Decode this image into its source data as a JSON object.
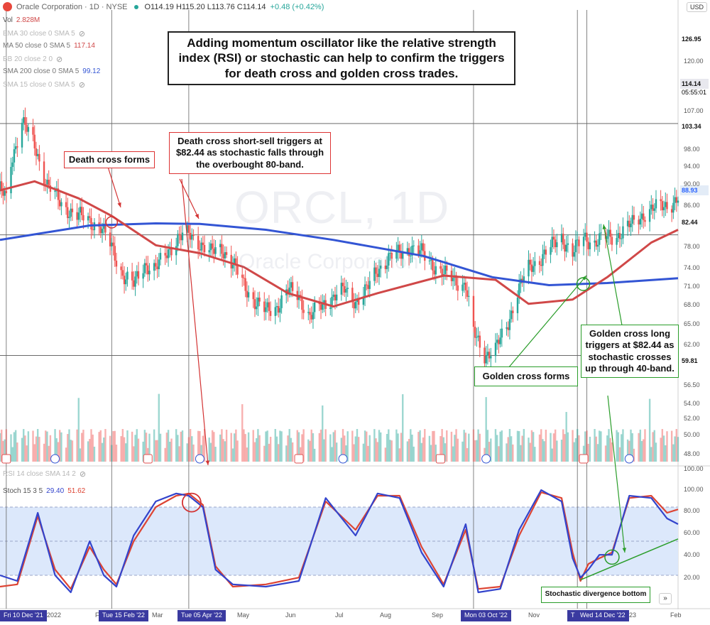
{
  "header": {
    "symbol_title": "Oracle Corporation · 1D · NYSE",
    "ohlc": "O114.19 H115.20 L113.76 C114.14",
    "change": "+0.48 (+0.42%)",
    "currency": "USD"
  },
  "legends": {
    "vol": {
      "label": "Vol",
      "value": "2.828M"
    },
    "ema30": {
      "label": "EMA 30 close 0 SMA 5"
    },
    "ma50": {
      "label": "MA 50 close 0 SMA 5",
      "value": "117.14"
    },
    "bb20": {
      "label": "BB 20 close 2 0"
    },
    "sma200": {
      "label": "SMA 200 close 0 SMA 5",
      "value": "99.12"
    },
    "sma15": {
      "label": "SMA 15 close 0 SMA 5"
    },
    "rsi": {
      "label": "RSI 14 close SMA 14 2"
    },
    "stoch": {
      "label": "Stoch 15 3 5",
      "k": "29.40",
      "d": "51.62"
    }
  },
  "watermark": {
    "ticker": "ORCL, 1D",
    "name": "Oracle Corporation"
  },
  "annotations": {
    "main": "Adding momentum oscillator like the relative strength index (RSI) or stochastic can help to confirm the triggers for death cross and golden cross trades.",
    "death_cross": "Death cross forms",
    "short_trigger": "Death cross short-sell triggers at $82.44 as stochastic falls through the overbought 80-band.",
    "golden_cross": "Golden cross forms",
    "long_trigger": "Golden cross long triggers at $82.44 as stochastic crosses up through 40-band.",
    "divergence": "Stochastic divergence bottom"
  },
  "price_tags": [
    {
      "value": "126.95",
      "bg": "#ffffff",
      "fg": "#111111"
    },
    {
      "value": "114.14",
      "sub": "05:55:01",
      "bg": "#e8e8ee",
      "fg": "#111111"
    },
    {
      "value": "103.34",
      "bg": "#ffffff",
      "fg": "#111111"
    },
    {
      "value": "88.93",
      "bg": "#e3ecf7",
      "fg": "#2962ff"
    },
    {
      "value": "82.44",
      "bg": "#ffffff",
      "fg": "#111111"
    },
    {
      "value": "59.81",
      "bg": "#ffffff",
      "fg": "#111111"
    }
  ],
  "price_axis_ticks": [
    "120.00",
    "107.00",
    "98.00",
    "94.00",
    "90.00",
    "86.00",
    "78.00",
    "74.00",
    "71.00",
    "68.00",
    "65.00",
    "62.00",
    "56.50",
    "54.00",
    "52.00",
    "50.00",
    "48.00"
  ],
  "osc_axis_ticks": [
    "100.00",
    "80.00",
    "60.00",
    "40.00",
    "20.00"
  ],
  "x_axis": {
    "labels": [
      "2022",
      "F",
      "Mar",
      "May",
      "Jun",
      "Jul",
      "Aug",
      "Sep",
      "Nov",
      "23",
      "Feb"
    ],
    "selected": [
      "Fri 10 Dec '21",
      "Tue 15 Feb '22",
      "Tue 05 Apr '22",
      "Mon 03 Oct '22",
      "T",
      "Wed 14 Dec '22"
    ]
  },
  "colors": {
    "sma200": "#3355d4",
    "ma50": "#d04848",
    "up": "#26a69a",
    "down": "#ef5350",
    "stoch_k": "#3344cc",
    "stoch_d": "#dd4433",
    "annot_red": "#d33333",
    "annot_green": "#2a9d2a",
    "osc_band": "#dce8fb"
  },
  "chart_data": [
    {
      "type": "candlestick",
      "title": "Oracle Corporation · 1D · NYSE",
      "ylim": [
        45,
        130
      ],
      "x_range": [
        "2021-12-06",
        "2023-02-10"
      ],
      "close_path_dates": [
        "2021-12-06",
        "2021-12-10",
        "2021-12-13",
        "2021-12-20",
        "2021-12-28",
        "2022-01-05",
        "2022-01-14",
        "2022-01-25",
        "2022-02-01",
        "2022-02-08",
        "2022-02-15",
        "2022-02-22",
        "2022-03-01",
        "2022-03-08",
        "2022-03-15",
        "2022-03-22",
        "2022-03-29",
        "2022-04-05",
        "2022-04-12",
        "2022-04-19",
        "2022-04-26",
        "2022-05-03",
        "2022-05-10",
        "2022-05-17",
        "2022-05-24",
        "2022-05-31",
        "2022-06-07",
        "2022-06-14",
        "2022-06-21",
        "2022-06-28",
        "2022-07-06",
        "2022-07-13",
        "2022-07-20",
        "2022-07-27",
        "2022-08-03",
        "2022-08-10",
        "2022-08-17",
        "2022-08-24",
        "2022-08-31",
        "2022-09-07",
        "2022-09-14",
        "2022-09-21",
        "2022-09-28",
        "2022-10-03",
        "2022-10-10",
        "2022-10-17",
        "2022-10-24",
        "2022-10-31",
        "2022-11-07",
        "2022-11-14",
        "2022-11-21",
        "2022-11-28",
        "2022-12-05",
        "2022-12-12",
        "2022-12-19",
        "2022-12-27",
        "2023-01-03",
        "2023-01-10",
        "2023-01-17",
        "2023-01-24",
        "2023-01-31",
        "2023-02-07",
        "2023-02-10"
      ],
      "close_path": [
        91,
        89,
        96,
        104,
        99,
        92,
        88,
        86,
        85,
        84,
        80,
        75,
        73,
        77,
        76,
        79,
        82,
        82.4,
        81,
        79,
        80,
        77,
        73,
        70,
        68,
        69,
        72,
        71,
        67,
        69,
        71,
        72,
        70,
        72,
        76,
        78,
        79,
        80,
        79,
        77,
        75,
        74,
        73,
        64,
        60,
        61,
        65,
        72,
        76,
        78,
        80,
        82,
        79,
        82,
        81,
        82,
        82.5,
        84,
        86,
        87,
        88,
        88.5,
        89
      ],
      "sma200": {
        "dates": [
          "2021-12-06",
          "2022-02-01",
          "2022-03-15",
          "2022-04-12",
          "2022-05-24",
          "2022-07-06",
          "2022-09-01",
          "2022-10-15",
          "2022-11-20",
          "2022-12-27",
          "2023-02-10"
        ],
        "values": [
          81.5,
          84.2,
          84.6,
          84.5,
          83.4,
          81.5,
          78.5,
          74.5,
          73.0,
          73.4,
          74.3
        ]
      },
      "ma50": {
        "dates": [
          "2021-12-06",
          "2021-12-28",
          "2022-01-25",
          "2022-02-15",
          "2022-03-15",
          "2022-04-12",
          "2022-05-10",
          "2022-06-07",
          "2022-07-06",
          "2022-08-03",
          "2022-09-14",
          "2022-10-17",
          "2022-11-07",
          "2022-12-05",
          "2022-12-27",
          "2023-01-24",
          "2023-02-10"
        ],
        "values": [
          90.8,
          92.5,
          89.3,
          86.0,
          80.5,
          79.0,
          76.4,
          71.5,
          69.0,
          71.5,
          74.8,
          74.0,
          69.5,
          70.3,
          74.5,
          81.0,
          83.4
        ]
      },
      "events": [
        {
          "name": "Death cross forms",
          "date": "2022-02-15",
          "price": 84.8
        },
        {
          "name": "Death cross short-sell trigger",
          "date": "2022-04-05",
          "price": 82.44
        },
        {
          "name": "Golden cross forms",
          "date": "2022-12-14",
          "price": 73.2
        },
        {
          "name": "Golden cross long trigger",
          "date": "2022-12-14",
          "price": 82.44
        }
      ]
    },
    {
      "type": "bar",
      "title": "Vol",
      "series": [
        {
          "name": "Vol",
          "last_value": "2.828M"
        }
      ]
    },
    {
      "type": "line",
      "title": "Stoch 15 3 5",
      "ylim": [
        0,
        100
      ],
      "bands": [
        80,
        50,
        20
      ],
      "x": [
        "2021-12-06",
        "2021-12-17",
        "2021-12-30",
        "2022-01-10",
        "2022-01-20",
        "2022-02-01",
        "2022-02-10",
        "2022-02-18",
        "2022-03-01",
        "2022-03-15",
        "2022-03-28",
        "2022-04-05",
        "2022-04-14",
        "2022-04-22",
        "2022-05-03",
        "2022-05-24",
        "2022-06-14",
        "2022-07-01",
        "2022-07-20",
        "2022-08-03",
        "2022-08-17",
        "2022-08-31",
        "2022-09-14",
        "2022-09-28",
        "2022-10-06",
        "2022-10-20",
        "2022-11-01",
        "2022-11-15",
        "2022-11-28",
        "2022-12-05",
        "2022-12-10",
        "2022-12-15",
        "2022-12-22",
        "2022-12-30",
        "2023-01-10",
        "2023-01-24",
        "2023-02-03",
        "2023-02-10"
      ],
      "series": [
        {
          "name": "K",
          "values": [
            20,
            15,
            75,
            20,
            5,
            50,
            20,
            10,
            55,
            85,
            92,
            90,
            80,
            25,
            12,
            10,
            15,
            88,
            55,
            92,
            88,
            40,
            10,
            65,
            5,
            8,
            60,
            95,
            85,
            35,
            18,
            25,
            38,
            38,
            90,
            88,
            70,
            65
          ]
        },
        {
          "name": "D",
          "values": [
            10,
            12,
            72,
            25,
            8,
            45,
            25,
            12,
            50,
            80,
            90,
            92,
            82,
            28,
            10,
            12,
            18,
            85,
            60,
            90,
            90,
            45,
            12,
            60,
            8,
            10,
            55,
            93,
            88,
            40,
            15,
            30,
            35,
            40,
            88,
            90,
            75,
            78
          ]
        }
      ],
      "last_values": {
        "K": "29.40",
        "D": "51.62"
      },
      "divergence_line": {
        "from": {
          "date": "2022-12-10",
          "value": 16
        },
        "to": {
          "date": "2023-02-10",
          "value": 52
        }
      }
    }
  ]
}
